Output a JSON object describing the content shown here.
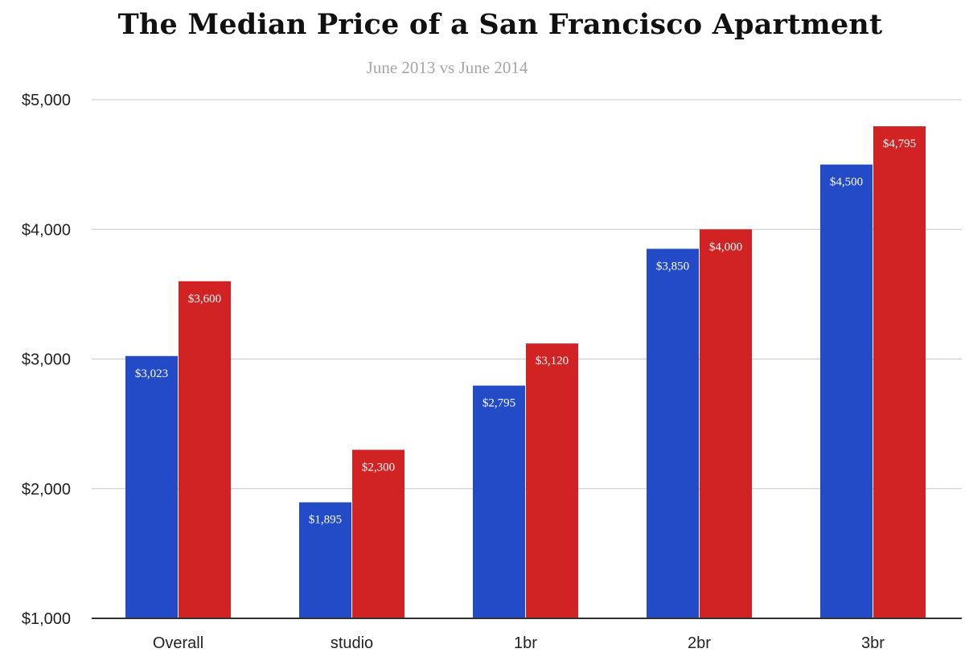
{
  "colors": {
    "series_2013": "#234bc8",
    "series_2014": "#d22324",
    "gridline": "#c8c8c8",
    "axis": "#333333"
  },
  "chart_data": {
    "type": "bar",
    "title": "The Median Price of a San Francisco Apartment",
    "subtitle": "June 2013 vs June 2014",
    "xlabel": "",
    "ylabel": "",
    "categories": [
      "Overall",
      "studio",
      "1br",
      "2br",
      "3br"
    ],
    "series": [
      {
        "values": [
          3023,
          1895,
          2795,
          3850,
          4500
        ],
        "labels": [
          "$3,023",
          "$1,895",
          "$2,795",
          "$3,850",
          "$4,500"
        ]
      },
      {
        "values": [
          3600,
          2300,
          3120,
          4000,
          4795
        ],
        "labels": [
          "$3,600",
          "$2,300",
          "$3,120",
          "$4,000",
          "$4,795"
        ]
      }
    ],
    "ylim": [
      1000,
      5000
    ],
    "yticks": [
      1000,
      2000,
      3000,
      4000,
      5000
    ],
    "ytick_labels": [
      "$1,000",
      "$2,000",
      "$3,000",
      "$4,000",
      "$5,000"
    ],
    "grid": true,
    "legend": "none"
  }
}
